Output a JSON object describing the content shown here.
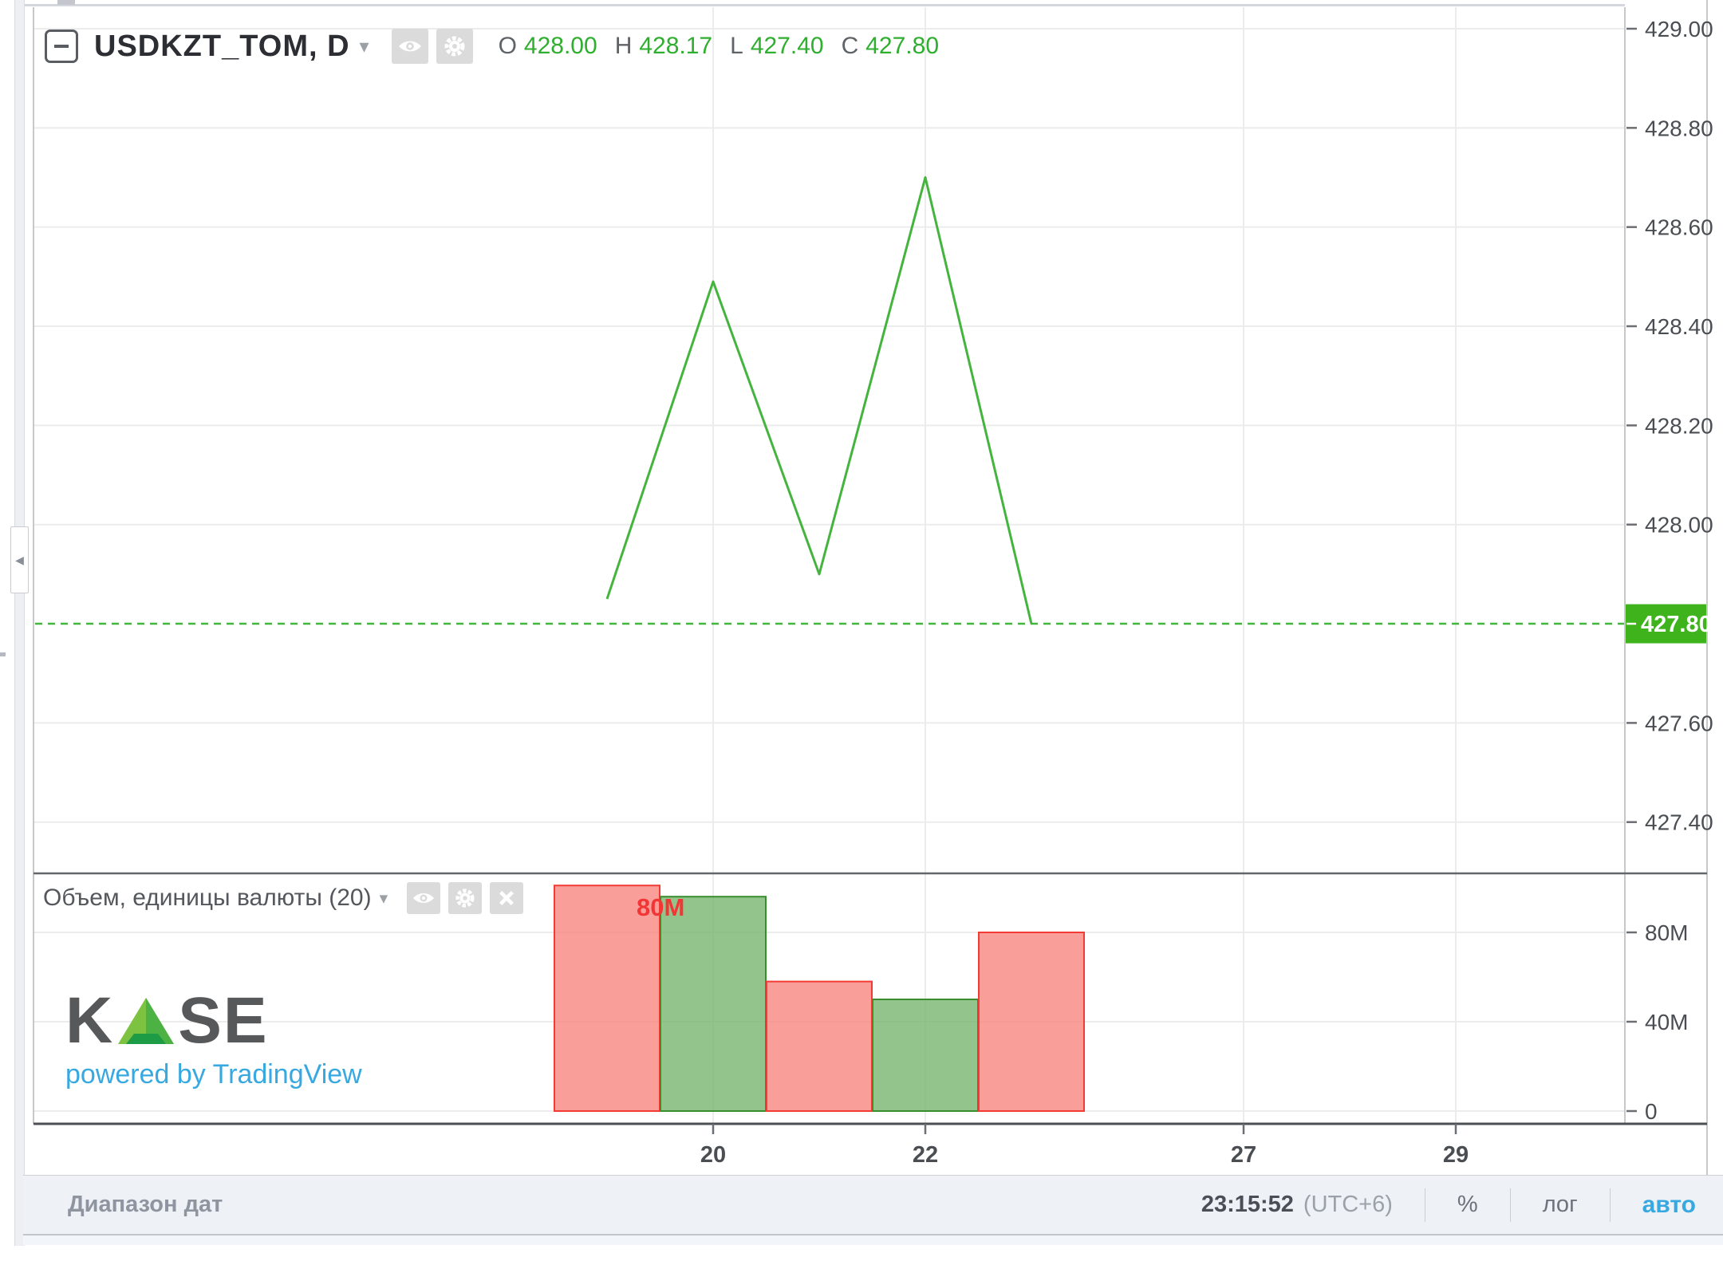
{
  "title_row": {
    "symbol": "USDKZT_TOM, D",
    "ohlc": {
      "o_label": "O",
      "o_value": "428.00",
      "h_label": "H",
      "h_value": "428.17",
      "l_label": "L",
      "l_value": "427.40",
      "c_label": "C",
      "c_value": "427.80"
    }
  },
  "volume_row": {
    "label": "Объем, единицы валюты (20)",
    "current_value": "80M"
  },
  "watermark": {
    "kase_left": "K",
    "kase_right": "SE",
    "powered_by": "powered by TradingView"
  },
  "toolbar": {
    "date_range_label": "Диапазон дат",
    "clock": "23:15:52",
    "timezone": "(UTC+6)",
    "percent_label": "%",
    "log_label": "лог",
    "auto_label": "авто"
  },
  "icons": {
    "caret_down": "▾",
    "collapse_left": "◀",
    "pane_collapse": "minus-square",
    "visibility": "eye",
    "settings": "gear",
    "remove": "x"
  },
  "colors": {
    "line_green": "#45b43e",
    "value_green": "#2fae2f",
    "badge_green": "#3eb31c",
    "bar_up_fill": "#74b36c",
    "bar_up_border": "#388e2f",
    "bar_down_fill": "#f8837c",
    "bar_down_border": "#f23b35",
    "value_red": "#f23535",
    "accent_blue": "#38a9e0",
    "axis_text": "#4a4d52",
    "grid": "#ececec"
  },
  "chart_data": {
    "type": "line",
    "symbol": "USDKZT_TOM",
    "interval": "D",
    "price_pane": {
      "x_days": [
        19,
        20,
        21,
        22,
        23
      ],
      "close": [
        427.85,
        428.49,
        427.9,
        428.7,
        427.8
      ],
      "last_price": 427.8,
      "last_price_label": "427.80",
      "ylim": [
        427.3,
        429.05
      ],
      "ticks": [
        {
          "label": "429.00",
          "value": 429.0
        },
        {
          "label": "428.80",
          "value": 428.8
        },
        {
          "label": "428.60",
          "value": 428.6
        },
        {
          "label": "428.40",
          "value": 428.4
        },
        {
          "label": "428.20",
          "value": 428.2
        },
        {
          "label": "428.00",
          "value": 428.0
        },
        {
          "label": "427.60",
          "value": 427.6
        },
        {
          "label": "427.40",
          "value": 427.4
        }
      ]
    },
    "volume_pane": {
      "type": "bar",
      "title": "Объем, единицы валюты (20)",
      "values_m": [
        101,
        96,
        58,
        50,
        80
      ],
      "directions": [
        "down",
        "up",
        "down",
        "up",
        "down"
      ],
      "ticks": [
        {
          "label": "80M",
          "value_m": 80
        },
        {
          "label": "40M",
          "value_m": 40
        },
        {
          "label": "0",
          "value_m": 0
        }
      ],
      "current_label": "80M"
    },
    "x_axis": {
      "trading_days": [
        19,
        20,
        21,
        22,
        23,
        24,
        27,
        28,
        29
      ],
      "labels": [
        {
          "label": "20",
          "day": 20
        },
        {
          "label": "22",
          "day": 22
        },
        {
          "label": "27",
          "day": 27
        },
        {
          "label": "29",
          "day": 29
        }
      ]
    },
    "grid": true,
    "ohlc_readout": {
      "open": 428.0,
      "high": 428.17,
      "low": 427.4,
      "close": 427.8
    }
  }
}
